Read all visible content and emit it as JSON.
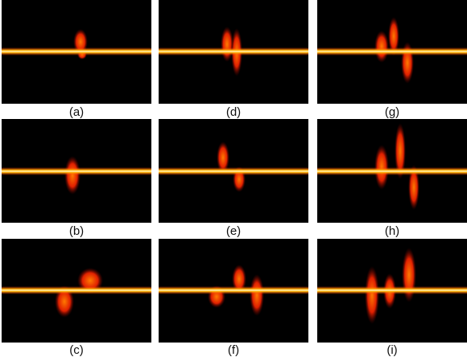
{
  "panels": [
    {
      "id": "a",
      "caption": "(a)"
    },
    {
      "id": "d",
      "caption": "(d)"
    },
    {
      "id": "g",
      "caption": "(g)"
    },
    {
      "id": "b",
      "caption": "(b)"
    },
    {
      "id": "e",
      "caption": "(e)"
    },
    {
      "id": "h",
      "caption": "(h)"
    },
    {
      "id": "c",
      "caption": "(c)"
    },
    {
      "id": "f",
      "caption": "(f)"
    },
    {
      "id": "i",
      "caption": "(i)"
    }
  ],
  "colors": {
    "background": "#000000",
    "line_core": "#fff7c0",
    "line_glow": "#ffb000",
    "blob_hot": "#ff5a00",
    "blob_cool": "#c00000"
  }
}
